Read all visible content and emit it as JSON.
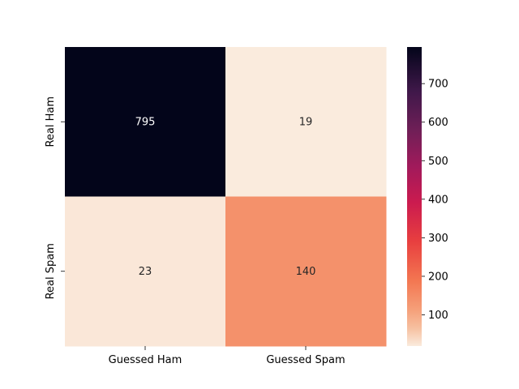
{
  "chart_data": {
    "type": "heatmap",
    "x_categories": [
      "Guessed Ham",
      "Guessed Spam"
    ],
    "y_categories": [
      "Real Ham",
      "Real Spam"
    ],
    "values": [
      [
        795,
        19
      ],
      [
        23,
        140
      ]
    ],
    "annotations": [
      "795",
      "19",
      "23",
      "140"
    ],
    "colorbar": {
      "colormap": "rocket_r",
      "vmin": 19,
      "vmax": 795,
      "ticks": [
        100,
        200,
        300,
        400,
        500,
        600,
        700
      ],
      "tick_labels": [
        "100",
        "200",
        "300",
        "400",
        "500",
        "600",
        "700"
      ]
    },
    "grid": false,
    "colors": {
      "low": "#faebdd",
      "high": "#03051a",
      "annotation_light": "#ffffff",
      "annotation_dark": "#262626"
    }
  }
}
